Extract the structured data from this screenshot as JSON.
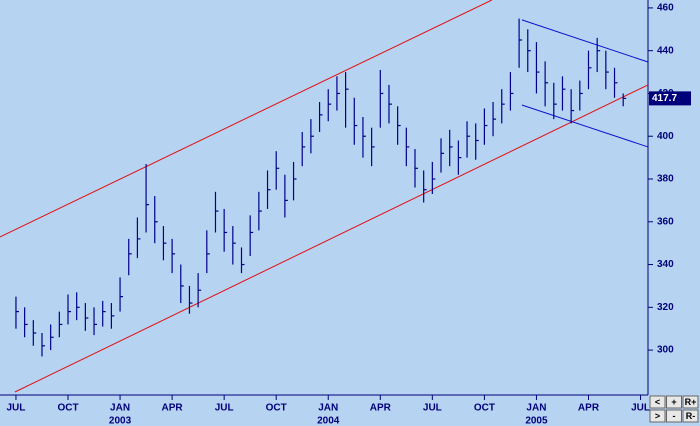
{
  "chart_data": {
    "type": "ohlc",
    "background": "#b7d3f2",
    "x": [
      0,
      0.5,
      1,
      1.5,
      2,
      2.5,
      3,
      3.5,
      4,
      4.5,
      5,
      5.5,
      6,
      6.5,
      7,
      7.5,
      8,
      8.5,
      9,
      9.5,
      10,
      10.5,
      11,
      11.5,
      12,
      12.5,
      13,
      13.5,
      14,
      14.5,
      15,
      15.5,
      16,
      16.5,
      17,
      17.5,
      18,
      18.5,
      19,
      19.5,
      20,
      20.5,
      21,
      21.5,
      22,
      22.5,
      23,
      23.5,
      24,
      24.5,
      25,
      25.5,
      26,
      26.5,
      27,
      27.5,
      28,
      28.5,
      29,
      29.5,
      30,
      30.5,
      31,
      31.5,
      32,
      32.5,
      33,
      33.5,
      34,
      34.5,
      35
    ],
    "series": [
      {
        "color": "#00008b",
        "high": [
          325,
          320,
          314,
          308,
          312,
          318,
          326,
          327,
          322,
          320,
          323,
          322,
          334,
          352,
          362,
          387,
          372,
          358,
          352,
          340,
          330,
          336,
          356,
          374,
          366,
          358,
          348,
          363,
          374,
          384,
          393,
          382,
          388,
          402,
          408,
          416,
          422,
          428,
          430,
          418,
          409,
          404,
          431,
          424,
          414,
          404,
          394,
          384,
          388,
          399,
          403,
          398,
          407,
          406,
          413,
          416,
          422,
          430,
          455,
          450,
          444,
          435,
          425,
          428,
          422,
          426,
          440,
          446,
          440,
          432,
          420
        ],
        "low": [
          310,
          306,
          302,
          297,
          300,
          306,
          312,
          314,
          309,
          307,
          311,
          310,
          318,
          335,
          343,
          355,
          350,
          342,
          336,
          322,
          317,
          320,
          336,
          355,
          346,
          340,
          336,
          344,
          356,
          366,
          375,
          362,
          370,
          386,
          392,
          402,
          407,
          412,
          404,
          396,
          390,
          386,
          404,
          406,
          396,
          386,
          376,
          369,
          373,
          383,
          386,
          382,
          390,
          389,
          396,
          400,
          406,
          412,
          432,
          430,
          420,
          414,
          408,
          412,
          406,
          412,
          422,
          430,
          422,
          418,
          414
        ],
        "close": [
          318,
          312,
          308,
          302,
          306,
          312,
          318,
          320,
          315,
          312,
          318,
          316,
          325,
          345,
          352,
          368,
          360,
          350,
          345,
          330,
          322,
          328,
          345,
          365,
          355,
          350,
          340,
          355,
          365,
          375,
          385,
          370,
          380,
          395,
          400,
          410,
          415,
          420,
          422,
          405,
          400,
          395,
          420,
          415,
          405,
          395,
          385,
          375,
          380,
          392,
          395,
          390,
          400,
          398,
          405,
          408,
          415,
          420,
          445,
          440,
          430,
          425,
          415,
          422,
          412,
          420,
          432,
          440,
          430,
          425,
          417.7
        ]
      }
    ],
    "trendlines": [
      {
        "color": "#e01010",
        "x": [
          -0.92,
          27.43
        ],
        "y": [
          352.9,
          463.7
        ]
      },
      {
        "color": "#e01010",
        "x": [
          -0.06,
          36.43
        ],
        "y": [
          280.4,
          424
        ]
      },
      {
        "color": "#1010d0",
        "x": [
          29.16,
          36.43
        ],
        "y": [
          454.4,
          434.7
        ]
      },
      {
        "color": "#1010d0",
        "x": [
          29.16,
          36.43
        ],
        "y": [
          414.6,
          395
        ]
      }
    ],
    "xlim": [
      -0.92,
      36.43
    ],
    "ylim": [
      279,
      463.7
    ],
    "yticks": [
      300,
      320,
      340,
      360,
      380,
      400,
      420,
      440,
      460
    ],
    "xticks": [
      {
        "value": 0,
        "label": "JUL"
      },
      {
        "value": 3,
        "label": "OCT"
      },
      {
        "value": 6,
        "label": "JAN"
      },
      {
        "value": 9,
        "label": "APR"
      },
      {
        "value": 12,
        "label": "JUL"
      },
      {
        "value": 15,
        "label": "OCT"
      },
      {
        "value": 18,
        "label": "JAN"
      },
      {
        "value": 21,
        "label": "APR"
      },
      {
        "value": 24,
        "label": "JUL"
      },
      {
        "value": 27,
        "label": "OCT"
      },
      {
        "value": 30,
        "label": "JAN"
      },
      {
        "value": 33,
        "label": "APR"
      },
      {
        "value": 36,
        "label": "JUL"
      }
    ],
    "year_labels": [
      {
        "value": 6,
        "label": "2003"
      },
      {
        "value": 18,
        "label": "2004"
      },
      {
        "value": 30,
        "label": "2005"
      }
    ],
    "controls": [
      [
        "<",
        "+",
        "R+"
      ],
      [
        ">",
        "-",
        "R-"
      ]
    ]
  }
}
